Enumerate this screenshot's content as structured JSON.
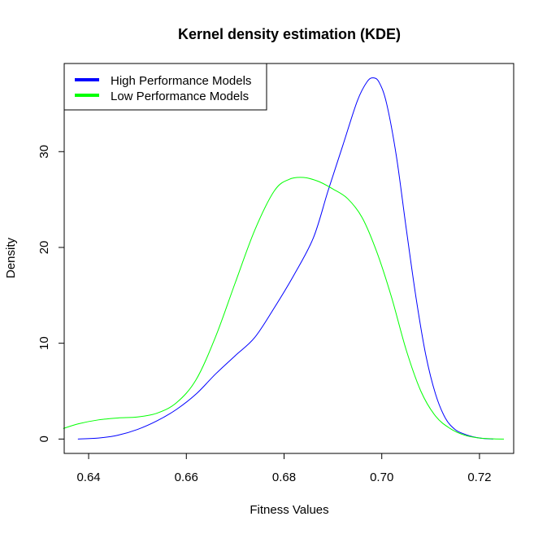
{
  "chart_data": {
    "type": "line",
    "title": "Kernel density estimation (KDE)",
    "xlabel": "Fitness Values",
    "ylabel": "Density",
    "xlim": [
      0.635,
      0.727
    ],
    "ylim": [
      -1.5,
      39.2
    ],
    "xticks": [
      0.64,
      0.66,
      0.68,
      0.7,
      0.72
    ],
    "xtick_labels": [
      "0.64",
      "0.66",
      "0.68",
      "0.70",
      "0.72"
    ],
    "yticks": [
      0,
      10,
      20,
      30
    ],
    "ytick_labels": [
      "0",
      "10",
      "20",
      "30"
    ],
    "grid": false,
    "legend_position": "top-left",
    "series": [
      {
        "name": "High Performance Models",
        "color": "#0000ff",
        "x": [
          0.6378,
          0.642,
          0.646,
          0.65,
          0.654,
          0.658,
          0.662,
          0.666,
          0.67,
          0.674,
          0.678,
          0.682,
          0.686,
          0.689,
          0.692,
          0.695,
          0.697,
          0.6983,
          0.6995,
          0.701,
          0.703,
          0.705,
          0.707,
          0.709,
          0.711,
          0.713,
          0.715,
          0.717,
          0.719,
          0.721,
          0.7228
        ],
        "y": [
          0.0,
          0.1,
          0.4,
          1.0,
          1.9,
          3.1,
          4.7,
          6.8,
          8.7,
          10.6,
          13.7,
          17.1,
          21.0,
          25.9,
          30.6,
          35.3,
          37.3,
          37.7,
          37.2,
          35.0,
          29.5,
          22.0,
          14.8,
          8.8,
          4.7,
          2.2,
          1.0,
          0.5,
          0.2,
          0.05,
          0.0
        ]
      },
      {
        "name": "Low Performance Models",
        "color": "#00ff00",
        "x": [
          0.6348,
          0.638,
          0.642,
          0.646,
          0.65,
          0.654,
          0.658,
          0.662,
          0.666,
          0.67,
          0.674,
          0.678,
          0.681,
          0.684,
          0.687,
          0.69,
          0.693,
          0.696,
          0.699,
          0.702,
          0.705,
          0.708,
          0.711,
          0.714,
          0.717,
          0.72,
          0.723,
          0.725
        ],
        "y": [
          1.1,
          1.6,
          2.0,
          2.2,
          2.3,
          2.7,
          3.8,
          6.2,
          10.7,
          16.3,
          21.8,
          25.9,
          27.1,
          27.3,
          26.9,
          26.1,
          25.1,
          23.1,
          19.5,
          14.8,
          9.3,
          5.0,
          2.4,
          1.1,
          0.4,
          0.1,
          0.02,
          0.0
        ]
      }
    ]
  }
}
